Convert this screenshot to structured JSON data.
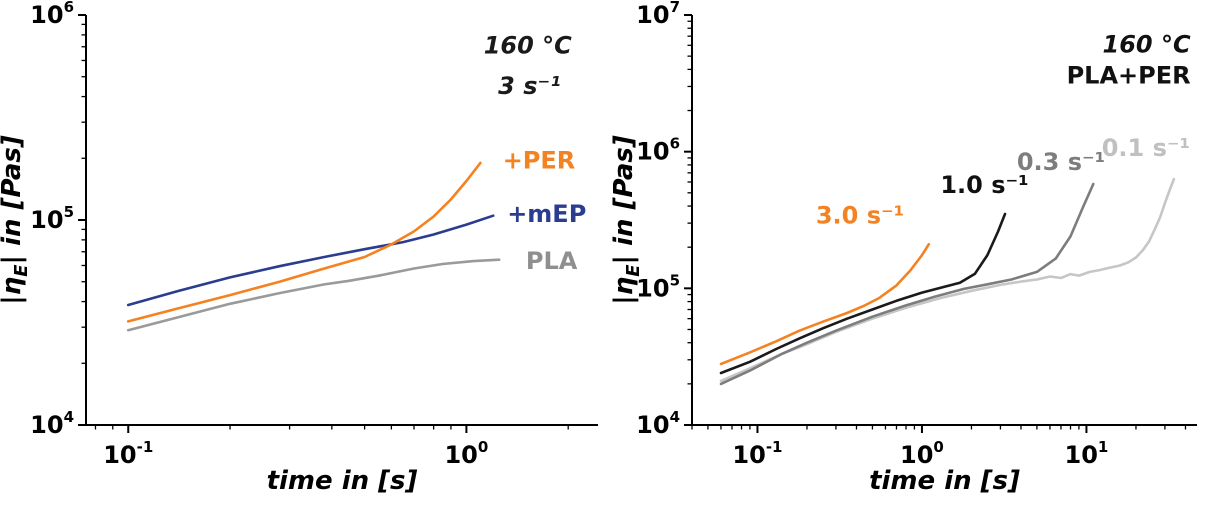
{
  "figure": {
    "background": "#ffffff"
  },
  "chart_data": [
    {
      "type": "line",
      "title": "",
      "xscale": "log",
      "yscale": "log",
      "xlim": [
        0.075,
        2.45
      ],
      "ylim": [
        10000,
        1000000
      ],
      "xlabel": "time in [s]",
      "ylabel": {
        "pre": "|η",
        "sub": "E",
        "post": "| in [Pas]"
      },
      "x_major_ticks": [
        0.1,
        1
      ],
      "y_major_ticks": [
        10000,
        100000,
        1000000
      ],
      "grid": false,
      "legend_position": "inline-labels",
      "annotations": [
        {
          "text": "160 °C",
          "x": 2.05,
          "y": 710000,
          "anchor": "end",
          "color": "#1a1a1a",
          "size": 24,
          "italic": true
        },
        {
          "text": "3 s⁻¹",
          "x": 1.9,
          "y": 450000,
          "anchor": "end",
          "color": "#1a1a1a",
          "size": 24,
          "italic": true
        },
        {
          "text": "+PER",
          "x": 1.28,
          "y": 195000,
          "anchor": "start",
          "color": "#f58220",
          "size": 24
        },
        {
          "text": "+mEP",
          "x": 1.32,
          "y": 107000,
          "anchor": "start",
          "color": "#2b3d8f",
          "size": 24
        },
        {
          "text": "PLA",
          "x": 1.5,
          "y": 63000,
          "anchor": "start",
          "color": "#8f8f8f",
          "size": 24
        }
      ],
      "series": [
        {
          "name": "PLA",
          "color": "#9a9a9a",
          "x": [
            0.1,
            0.14,
            0.2,
            0.28,
            0.38,
            0.45,
            0.55,
            0.7,
            0.85,
            1.05,
            1.25
          ],
          "y": [
            29000,
            33500,
            39000,
            44000,
            48500,
            50500,
            53500,
            58000,
            61000,
            63000,
            64000
          ]
        },
        {
          "name": "+mEP",
          "color": "#2b3d8f",
          "x": [
            0.1,
            0.14,
            0.2,
            0.28,
            0.38,
            0.5,
            0.65,
            0.8,
            1.0,
            1.2
          ],
          "y": [
            38500,
            45000,
            52500,
            59500,
            66000,
            72000,
            78000,
            85000,
            95000,
            105000
          ]
        },
        {
          "name": "+PER",
          "color": "#f58220",
          "x": [
            0.1,
            0.14,
            0.2,
            0.28,
            0.38,
            0.5,
            0.6,
            0.7,
            0.8,
            0.9,
            1.0,
            1.1
          ],
          "y": [
            32000,
            37000,
            43000,
            50000,
            58000,
            66000,
            76000,
            88000,
            104000,
            126000,
            155000,
            190000
          ]
        }
      ]
    },
    {
      "type": "line",
      "title": "",
      "xscale": "log",
      "yscale": "log",
      "xlim": [
        0.04,
        47
      ],
      "ylim": [
        10000,
        10000000
      ],
      "xlabel": "time in [s]",
      "ylabel": {
        "pre": "|η",
        "sub": "E",
        "post": "| in [Pas]"
      },
      "x_major_ticks": [
        0.1,
        1,
        10
      ],
      "y_major_ticks": [
        10000,
        100000,
        1000000,
        10000000
      ],
      "grid": false,
      "legend_position": "inline-labels",
      "annotations": [
        {
          "text": "160 °C",
          "x": 43,
          "y": 6100000,
          "anchor": "end",
          "color": "#111111",
          "size": 24,
          "italic": true
        },
        {
          "text": "PLA+PER",
          "x": 43,
          "y": 3600000,
          "anchor": "end",
          "color": "#111111",
          "size": 24
        },
        {
          "text": "3.0 s⁻¹",
          "x": 0.42,
          "y": 340000,
          "anchor": "middle",
          "color": "#f58220",
          "size": 24
        },
        {
          "text": "1.0 s⁻¹",
          "x": 2.4,
          "y": 570000,
          "anchor": "middle",
          "color": "#111111",
          "size": 24
        },
        {
          "text": "0.3 s⁻¹",
          "x": 7,
          "y": 840000,
          "anchor": "middle",
          "color": "#7d7d7d",
          "size": 24
        },
        {
          "text": "0.1 s⁻¹",
          "x": 23,
          "y": 1060000,
          "anchor": "middle",
          "color": "#c0c0c0",
          "size": 24
        }
      ],
      "series": [
        {
          "name": "0.1 s⁻¹",
          "color": "#c6c6c6",
          "x": [
            0.06,
            0.09,
            0.14,
            0.2,
            0.3,
            0.5,
            0.8,
            1.3,
            2,
            3,
            4,
            5,
            6,
            7,
            8,
            9,
            10.5,
            12,
            14,
            16,
            18,
            20,
            22,
            24,
            26,
            28,
            30,
            32,
            34
          ],
          "y": [
            21000,
            26000,
            33000,
            39000,
            48000,
            60000,
            72000,
            85000,
            96000,
            106000,
            112000,
            116000,
            122000,
            119000,
            127000,
            124000,
            132000,
            136000,
            142000,
            147000,
            155000,
            168000,
            190000,
            220000,
            270000,
            330000,
            420000,
            520000,
            630000
          ]
        },
        {
          "name": "0.3 s⁻¹",
          "color": "#7d7d7d",
          "x": [
            0.06,
            0.09,
            0.14,
            0.2,
            0.3,
            0.5,
            0.8,
            1.2,
            1.8,
            2.5,
            3.5,
            5,
            6.5,
            8,
            9.5,
            11
          ],
          "y": [
            20000,
            25000,
            33000,
            40000,
            49000,
            62000,
            75000,
            87000,
            99000,
            107000,
            116000,
            132000,
            165000,
            240000,
            390000,
            580000
          ]
        },
        {
          "name": "1.0 s⁻¹",
          "color": "#1a1a1a",
          "x": [
            0.06,
            0.09,
            0.13,
            0.18,
            0.25,
            0.35,
            0.5,
            0.7,
            1.0,
            1.3,
            1.7,
            2.1,
            2.5,
            2.9,
            3.2
          ],
          "y": [
            24000,
            29000,
            36000,
            43000,
            51000,
            60000,
            70000,
            81000,
            93000,
            101000,
            110000,
            128000,
            175000,
            260000,
            350000
          ]
        },
        {
          "name": "3.0 s⁻¹",
          "color": "#f58220",
          "x": [
            0.06,
            0.09,
            0.13,
            0.18,
            0.25,
            0.35,
            0.45,
            0.55,
            0.7,
            0.85,
            1.0,
            1.1
          ],
          "y": [
            28000,
            34000,
            41000,
            49000,
            57000,
            66000,
            75000,
            85000,
            105000,
            135000,
            175000,
            210000
          ]
        }
      ]
    }
  ]
}
